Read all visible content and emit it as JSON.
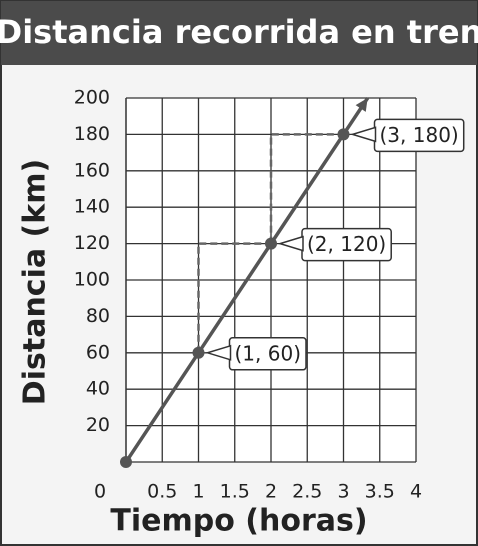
{
  "chart_data": {
    "type": "line",
    "title": "Distancia recorrida en tren",
    "x_label": "Tiempo  (horas)",
    "y_label": "Distancia  (km)",
    "x": [
      0,
      1,
      2,
      3
    ],
    "series": [
      {
        "color": "#555555",
        "values": [
          0,
          60,
          120,
          180
        ],
        "value_labels": [
          null,
          "(1, 60)",
          "(2, 120)",
          "(3, 180)"
        ]
      }
    ],
    "xlim": [
      0,
      4
    ],
    "xticks": [
      0,
      0.5,
      1,
      1.5,
      2,
      2.5,
      3,
      3.5,
      4
    ],
    "ylim": [
      0,
      200
    ],
    "yticks": [
      20,
      40,
      60,
      80,
      100,
      120,
      140,
      160,
      180,
      200
    ],
    "grid": true
  }
}
